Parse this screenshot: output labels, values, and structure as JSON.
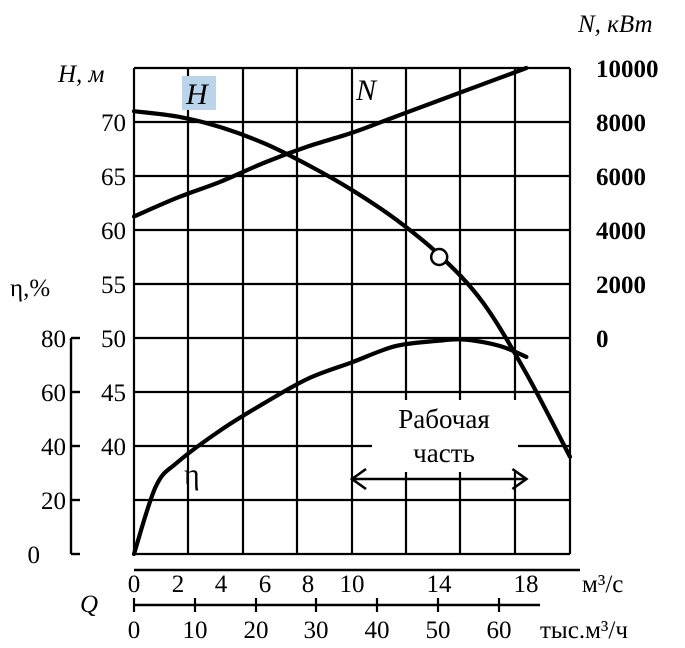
{
  "chart_data": {
    "type": "line",
    "title": "",
    "grid": true,
    "x_axis": {
      "label": "м³/с",
      "letter": "Q",
      "range": [
        0,
        20
      ],
      "ticks": [
        "0",
        "2",
        "4",
        "6",
        "8",
        "10",
        "14",
        "18"
      ],
      "tick_values": [
        0,
        2,
        4,
        6,
        8,
        10,
        14,
        18
      ]
    },
    "x2_axis": {
      "label": "тыс.м³/ч",
      "ticks": [
        "0",
        "10",
        "20",
        "30",
        "40",
        "50",
        "60"
      ],
      "tick_values": [
        0,
        10,
        20,
        30,
        40,
        50,
        60
      ]
    },
    "h_axis": {
      "label": "H, м",
      "range": [
        35,
        75
      ],
      "ticks": [
        "70",
        "65",
        "60",
        "55",
        "50",
        "45",
        "40"
      ],
      "tick_values": [
        70,
        65,
        60,
        55,
        50,
        45,
        40
      ]
    },
    "n_axis": {
      "label": "N, кВт",
      "range": [
        0,
        10000
      ],
      "ticks": [
        "10000",
        "8000",
        "6000",
        "4000",
        "2000",
        "0"
      ],
      "tick_values": [
        10000,
        8000,
        6000,
        4000,
        2000,
        0
      ]
    },
    "eta_axis": {
      "label": "η,%",
      "range": [
        0,
        80
      ],
      "ticks": [
        "80",
        "60",
        "40",
        "20",
        "0"
      ],
      "tick_values": [
        80,
        60,
        40,
        20,
        0
      ]
    },
    "series": [
      {
        "name": "H",
        "axis": "h",
        "x": [
          0,
          2,
          4,
          6,
          8,
          10,
          12,
          14,
          16,
          18,
          20
        ],
        "y": [
          71,
          70.5,
          69.5,
          68,
          66,
          63.7,
          61,
          57.7,
          53.3,
          46.7,
          39
        ]
      },
      {
        "name": "N",
        "axis": "n",
        "x": [
          0,
          2,
          4,
          6,
          8,
          10,
          12,
          14,
          16,
          18
        ],
        "y": [
          4500,
          5200,
          5800,
          6500,
          7100,
          7600,
          8200,
          8800,
          9400,
          10000
        ]
      },
      {
        "name": "η",
        "axis": "eta",
        "x": [
          0,
          1,
          2,
          4,
          6,
          8,
          10,
          12,
          14,
          15,
          16,
          17,
          18
        ],
        "y": [
          0,
          25,
          34,
          46,
          56,
          65,
          71,
          77,
          79,
          79.5,
          78.5,
          76.5,
          73
        ]
      }
    ],
    "marker": {
      "x": 14,
      "y": 57.5,
      "axis": "h"
    },
    "annotation": {
      "line1": "Рабочая",
      "line2": "часть",
      "x_range": [
        10,
        18
      ]
    }
  }
}
